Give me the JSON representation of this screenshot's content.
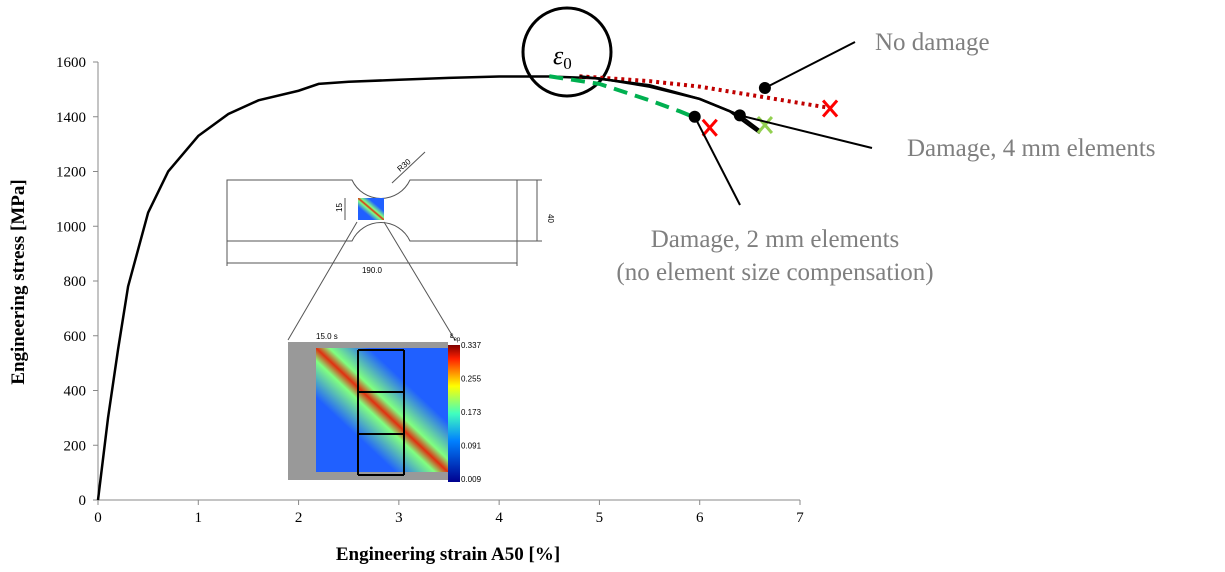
{
  "chart_data": {
    "type": "line",
    "x_label": "Engineering strain A50 [%]",
    "y_label": "Engineering stress [MPa]",
    "xlim": [
      0,
      7
    ],
    "ylim": [
      0,
      1600
    ],
    "xticks": [
      0,
      1,
      2,
      3,
      4,
      5,
      6,
      7
    ],
    "yticks": [
      0,
      200,
      400,
      600,
      800,
      1000,
      1200,
      1400,
      1600
    ],
    "series": [
      {
        "color": "#000000",
        "style": "solid",
        "x": [
          0,
          0.05,
          0.1,
          0.2,
          0.3,
          0.5,
          0.7,
          1,
          1.3,
          1.6,
          2,
          2.2,
          2.5,
          3,
          3.5,
          4,
          4.5,
          5,
          5.5,
          6,
          6.3,
          6.6
        ],
        "y": [
          0,
          150,
          300,
          550,
          780,
          1050,
          1200,
          1330,
          1410,
          1460,
          1495,
          1520,
          1528,
          1535,
          1542,
          1547,
          1547,
          1540,
          1510,
          1465,
          1420,
          1340
        ]
      },
      {
        "name": "No damage",
        "color": "#c00000",
        "style": "dotted",
        "x": [
          4.8,
          5.5,
          6,
          6.5,
          7.3
        ],
        "y": [
          1548,
          1530,
          1510,
          1480,
          1432
        ]
      },
      {
        "name": "Damage, 4 mm elements",
        "color": "#000000",
        "style": "solid",
        "x": [
          4.8,
          5.5,
          6,
          6.4,
          6.6
        ],
        "y": [
          1548,
          1515,
          1465,
          1405,
          1350
        ]
      },
      {
        "name": "Damage, 2 mm elements",
        "color": "#00b050",
        "style": "dashed",
        "x": [
          4.5,
          5,
          5.5,
          5.8,
          6
        ],
        "y": [
          1548,
          1520,
          1460,
          1420,
          1390
        ]
      }
    ],
    "annotations": [
      {
        "text": "No damage",
        "point": [
          6.65,
          1505
        ]
      },
      {
        "text": "Damage, 4 mm elements",
        "point": [
          6.4,
          1405
        ]
      },
      {
        "text": "Damage, 2 mm elements",
        "text2": "(no element size compensation)",
        "point": [
          5.95,
          1400
        ]
      }
    ],
    "failure_points": [
      {
        "x": 7.3,
        "y": 1430,
        "color": "#ff0000"
      },
      {
        "x": 6.1,
        "y": 1360,
        "color": "#ff0000"
      },
      {
        "x": 6.65,
        "y": 1370,
        "color": "#92d050"
      }
    ],
    "circle_label": {
      "symbol": "ε",
      "subscript": "0"
    },
    "inset": {
      "radius": "R30",
      "width": "15",
      "height": "40",
      "length": "190.0",
      "time": "15.0 s",
      "colorbar_title": "ε",
      "colorbar_sub": "ep",
      "colorbar_ticks": [
        "0.337",
        "0.255",
        "0.173",
        "0.091",
        "0.009"
      ]
    }
  }
}
